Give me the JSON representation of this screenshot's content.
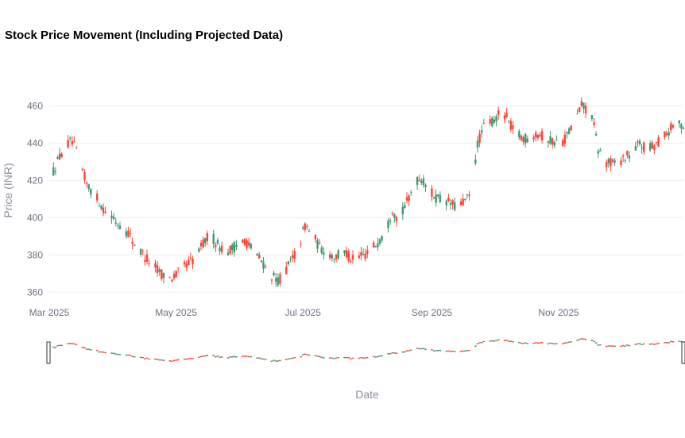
{
  "chart_data": {
    "type": "candlestick",
    "title": "Stock Price Movement (Including Projected Data)",
    "xlabel": "Date",
    "ylabel": "Price (INR)",
    "x_range": [
      "2025-03-01",
      "2025-12-31"
    ],
    "ylim": [
      355,
      470
    ],
    "y_ticks": [
      360,
      380,
      400,
      420,
      440,
      460
    ],
    "x_ticks": [
      {
        "date": "2025-03-01",
        "label": "Mar 2025"
      },
      {
        "date": "2025-05-01",
        "label": "May 2025"
      },
      {
        "date": "2025-07-01",
        "label": "Jul 2025"
      },
      {
        "date": "2025-09-01",
        "label": "Sep 2025"
      },
      {
        "date": "2025-11-01",
        "label": "Nov 2025"
      }
    ],
    "grid": true,
    "range_slider": true,
    "colors": {
      "increasing": "#3d9970",
      "decreasing": "#ff4136",
      "grid": "#ebedf0"
    },
    "trend_close": [
      [
        "2025-03-01",
        420
      ],
      [
        "2025-03-05",
        430
      ],
      [
        "2025-03-08",
        438
      ],
      [
        "2025-03-12",
        441
      ],
      [
        "2025-03-15",
        432
      ],
      [
        "2025-03-19",
        418
      ],
      [
        "2025-03-23",
        412
      ],
      [
        "2025-03-27",
        405
      ],
      [
        "2025-04-02",
        398
      ],
      [
        "2025-04-08",
        392
      ],
      [
        "2025-04-12",
        384
      ],
      [
        "2025-04-17",
        378
      ],
      [
        "2025-04-22",
        372
      ],
      [
        "2025-04-27",
        367
      ],
      [
        "2025-05-01",
        369
      ],
      [
        "2025-05-05",
        374
      ],
      [
        "2025-05-10",
        378
      ],
      [
        "2025-05-14",
        386
      ],
      [
        "2025-05-17",
        391
      ],
      [
        "2025-05-21",
        386
      ],
      [
        "2025-05-25",
        381
      ],
      [
        "2025-05-30",
        385
      ],
      [
        "2025-06-03",
        388
      ],
      [
        "2025-06-06",
        384
      ],
      [
        "2025-06-10",
        378
      ],
      [
        "2025-06-14",
        372
      ],
      [
        "2025-06-18",
        366
      ],
      [
        "2025-06-21",
        368
      ],
      [
        "2025-06-25",
        376
      ],
      [
        "2025-06-29",
        384
      ],
      [
        "2025-07-02",
        396
      ],
      [
        "2025-07-05",
        392
      ],
      [
        "2025-07-09",
        384
      ],
      [
        "2025-07-13",
        381
      ],
      [
        "2025-07-17",
        379
      ],
      [
        "2025-07-21",
        382
      ],
      [
        "2025-07-25",
        377
      ],
      [
        "2025-07-29",
        379
      ],
      [
        "2025-08-02",
        382
      ],
      [
        "2025-08-06",
        387
      ],
      [
        "2025-08-10",
        393
      ],
      [
        "2025-08-13",
        405
      ],
      [
        "2025-08-16",
        398
      ],
      [
        "2025-08-20",
        408
      ],
      [
        "2025-08-24",
        420
      ],
      [
        "2025-08-27",
        421
      ],
      [
        "2025-08-31",
        414
      ],
      [
        "2025-09-04",
        410
      ],
      [
        "2025-09-08",
        409
      ],
      [
        "2025-09-12",
        406
      ],
      [
        "2025-09-16",
        408
      ],
      [
        "2025-09-20",
        412
      ],
      [
        "2025-09-23",
        440
      ],
      [
        "2025-09-27",
        451
      ],
      [
        "2025-10-01",
        452
      ],
      [
        "2025-10-05",
        458
      ],
      [
        "2025-10-09",
        449
      ],
      [
        "2025-10-13",
        444
      ],
      [
        "2025-10-17",
        442
      ],
      [
        "2025-10-21",
        446
      ],
      [
        "2025-10-25",
        443
      ],
      [
        "2025-10-29",
        441
      ],
      [
        "2025-11-02",
        440
      ],
      [
        "2025-11-05",
        444
      ],
      [
        "2025-11-09",
        452
      ],
      [
        "2025-11-12",
        460
      ],
      [
        "2025-11-15",
        458
      ],
      [
        "2025-11-17",
        455
      ],
      [
        "2025-11-20",
        436
      ],
      [
        "2025-11-24",
        430
      ],
      [
        "2025-11-28",
        429
      ],
      [
        "2025-12-02",
        432
      ],
      [
        "2025-12-06",
        434
      ],
      [
        "2025-12-10",
        440
      ],
      [
        "2025-12-14",
        436
      ],
      [
        "2025-12-18",
        440
      ],
      [
        "2025-12-22",
        444
      ],
      [
        "2025-12-26",
        449
      ],
      [
        "2025-12-31",
        450
      ]
    ]
  }
}
